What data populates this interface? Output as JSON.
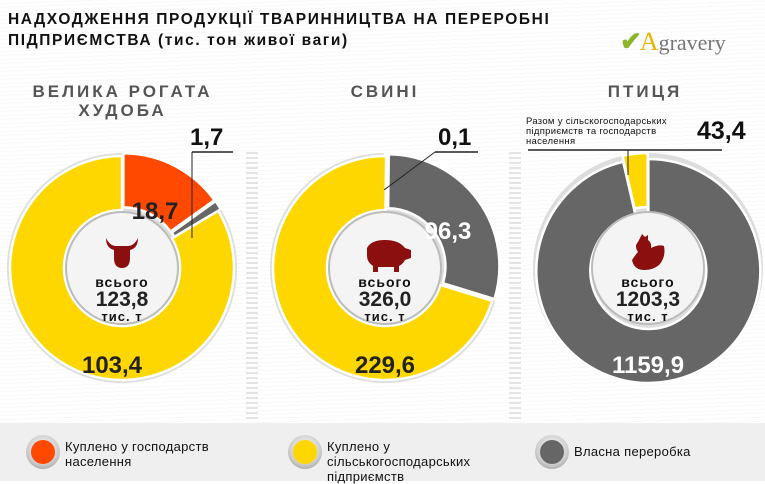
{
  "title": "НАДХОДЖЕННЯ ПРОДУКЦІЇ ТВАРИННИЦТВА НА ПЕРЕРОБНІ ПІДПРИЄМСТВА (тис. тон живої ваги)",
  "logo": {
    "text": "Agravery"
  },
  "colors": {
    "households": "#ff4800",
    "enterprises": "#ffd700",
    "own": "#666666"
  },
  "chart_data": {
    "type": "pie",
    "title": "НАДХОДЖЕННЯ ПРОДУКЦІЇ ТВАРИННИЦТВА НА ПЕРЕРОБНІ ПІДПРИЄМСТВА (тис. тон живої ваги)",
    "legend": [
      "Куплено у господарств населення",
      "Куплено  у сільськогосподарських підприємств",
      "Власна переробка"
    ],
    "legend_position": "bottom",
    "charts": [
      {
        "name": "ВЕЛИКА РОГАТА ХУДОБА",
        "total_label": "всього",
        "total": "123,8",
        "unit": "тис. т",
        "icon": "cow-icon",
        "slices": [
          {
            "series": "households",
            "value": 18.7,
            "label": "18,7"
          },
          {
            "series": "own",
            "value": 1.7,
            "label": "1,7"
          },
          {
            "series": "enterprises",
            "value": 103.4,
            "label": "103,4"
          }
        ]
      },
      {
        "name": "СВИНІ",
        "total_label": "всього",
        "total": "326,0",
        "unit": "тис. т",
        "icon": "pig-icon",
        "slices": [
          {
            "series": "households",
            "value": 0.1,
            "label": "0,1"
          },
          {
            "series": "own",
            "value": 96.3,
            "label": "96,3"
          },
          {
            "series": "enterprises",
            "value": 229.6,
            "label": "229,6"
          }
        ]
      },
      {
        "name": "ПТИЦЯ",
        "total_label": "всього",
        "total": "1203,3",
        "unit": "тис. т",
        "icon": "chicken-icon",
        "note": "Разом у сільскогосподарських підприємств та господарств населення",
        "slices": [
          {
            "series": "own",
            "value": 1159.9,
            "label": "1159,9"
          },
          {
            "series": "enterprises",
            "value": 43.4,
            "label": "43,4"
          }
        ]
      }
    ]
  }
}
